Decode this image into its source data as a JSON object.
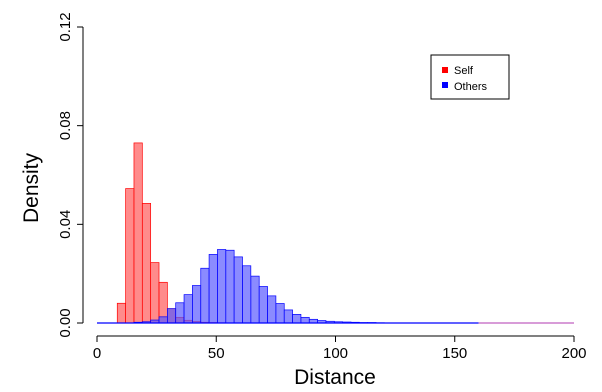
{
  "chart_data": {
    "type": "bar",
    "subtype": "overlapping-histogram",
    "xlabel": "Distance",
    "ylabel": "Density",
    "xlim": [
      0,
      200
    ],
    "ylim": [
      0,
      0.12
    ],
    "x_ticks": [
      "0",
      "50",
      "100",
      "150",
      "200"
    ],
    "y_ticks": [
      "0.00",
      "0.04",
      "0.08",
      "0.12"
    ],
    "y_tick_values": [
      0,
      0.04,
      0.08,
      0.12
    ],
    "x_tick_values": [
      0,
      50,
      100,
      150,
      200
    ],
    "bin_width": 3.5,
    "grid": false,
    "legend_position": "top-right",
    "series": [
      {
        "name": "Self",
        "color": "#ff0000",
        "fill": "#ff5a5a",
        "bins_start": 8.5,
        "values": [
          0.008,
          0.0545,
          0.073,
          0.0485,
          0.0245,
          0.0165,
          0.0058,
          0.0023,
          0.0011,
          0.0006,
          0.0003,
          0.0002,
          0.0001
        ]
      },
      {
        "name": "Others",
        "color": "#0000ff",
        "fill": "#5a5aff",
        "bins_start": 15.5,
        "values": [
          0.0003,
          0.0005,
          0.0012,
          0.0025,
          0.0058,
          0.0082,
          0.0115,
          0.0152,
          0.0222,
          0.0278,
          0.0298,
          0.0295,
          0.0268,
          0.0232,
          0.019,
          0.0148,
          0.011,
          0.0079,
          0.0053,
          0.0035,
          0.0023,
          0.0015,
          0.001,
          0.0007,
          0.0005,
          0.0004,
          0.0003,
          0.0002,
          0.0002,
          0.0001
        ]
      }
    ],
    "baseline_segments": [
      {
        "from": 0,
        "to": 160,
        "color": "#0000ff"
      },
      {
        "from": 160,
        "to": 200,
        "color": "#c060c0"
      }
    ]
  }
}
